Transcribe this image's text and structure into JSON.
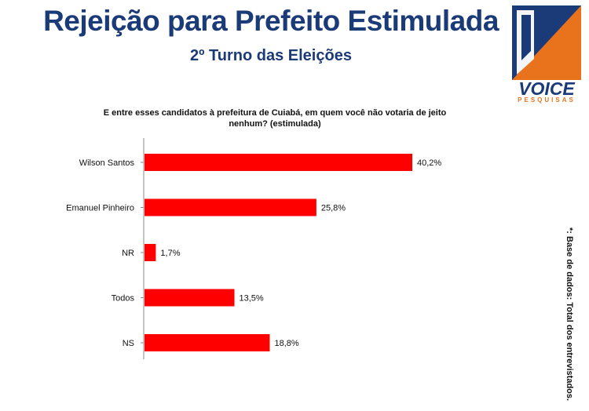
{
  "header": {
    "title": "Rejeição para Prefeito Estimulada",
    "subtitle": "2º Turno das Eleições"
  },
  "logo": {
    "word": "VOICE",
    "sub": "PESQUISAS",
    "colors": {
      "blue": "#1b3a78",
      "orange": "#e8731c"
    }
  },
  "note": "*: Base de dados: Total dos entrevistados.",
  "chart_data": {
    "type": "bar",
    "orientation": "horizontal",
    "title": "E entre esses candidatos à prefeitura de Cuiabá, em quem você não votaria de jeito nenhum? (estimulada)",
    "categories": [
      "Wilson Santos",
      "Emanuel Pinheiro",
      "NR",
      "Todos",
      "NS"
    ],
    "values": [
      40.2,
      25.8,
      1.7,
      13.5,
      18.8
    ],
    "value_labels": [
      "40,2%",
      "25,8%",
      "1,7%",
      "13,5%",
      "18,8%"
    ],
    "bar_color": "#ff0000",
    "xlim": [
      0,
      45
    ]
  }
}
